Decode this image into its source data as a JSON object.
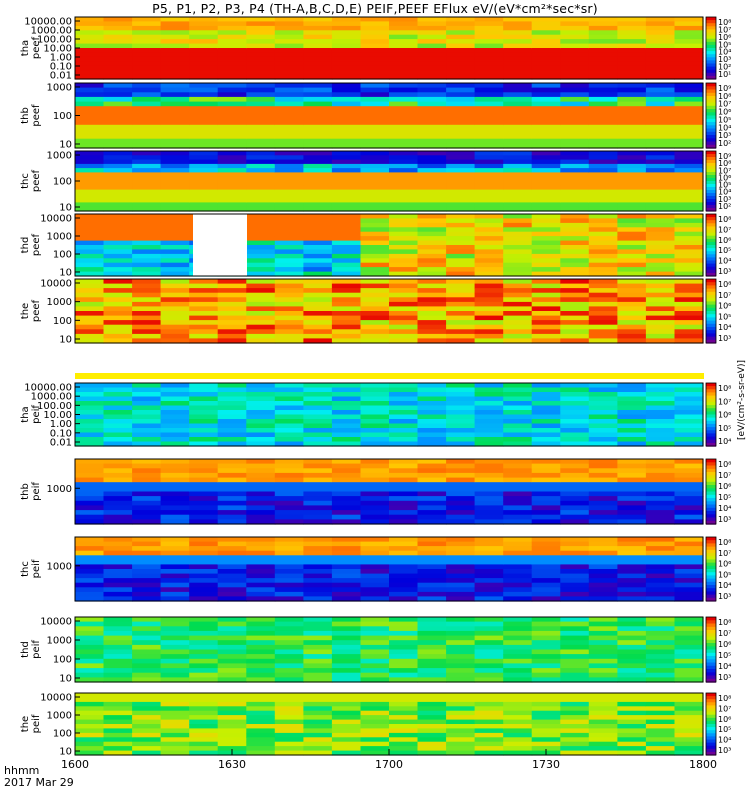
{
  "title": "P5, P1, P2, P3, P4 (TH-A,B,C,D,E) PEIF,PEEF EFlux eV/(eV*cm²*sec*sr)",
  "footer": {
    "time_format": "hhmm",
    "date": "2017 Mar 29"
  },
  "chart_data": {
    "type": "heatmap",
    "x_ticks": [
      "1600",
      "1630",
      "1700",
      "1730",
      "1800"
    ],
    "x_range": [
      1600,
      1800
    ],
    "colorbar_unit": "[eV/(cm²-s-sr-eV)]",
    "panels": [
      {
        "probe": "tha",
        "product": "peef",
        "yticks": [
          "10000.00",
          "1000.00",
          "100.00",
          "10.00",
          "1.00",
          "0.10",
          "0.01"
        ],
        "cbar_ticks": [
          "10⁸",
          "10⁷",
          "10⁶",
          "10⁵",
          "10⁴",
          "10³",
          "10²",
          "10¹"
        ]
      },
      {
        "probe": "thb",
        "product": "peef",
        "yticks": [
          "1000",
          "100",
          "10"
        ],
        "cbar_ticks": [
          "10⁹",
          "10⁸",
          "10⁷",
          "10⁶",
          "10⁵",
          "10⁴",
          "10³",
          "10²"
        ]
      },
      {
        "probe": "thc",
        "product": "peef",
        "yticks": [
          "1000",
          "100",
          "10"
        ],
        "cbar_ticks": [
          "10⁹",
          "10⁸",
          "10⁷",
          "10⁶",
          "10⁵",
          "10⁴",
          "10³",
          "10²"
        ]
      },
      {
        "probe": "thd",
        "product": "peef",
        "yticks": [
          "10000",
          "1000",
          "100",
          "10"
        ],
        "cbar_ticks": [
          "10⁸",
          "10⁷",
          "10⁶",
          "10⁵",
          "10⁴",
          "10³"
        ]
      },
      {
        "probe": "the",
        "product": "peef",
        "yticks": [
          "10000",
          "1000",
          "100",
          "10"
        ],
        "cbar_ticks": [
          "10⁸",
          "10⁷",
          "10⁶",
          "10⁵",
          "10⁴",
          "10³"
        ]
      },
      {
        "probe": "tha",
        "product": "peif",
        "yticks": [
          "10000.00",
          "1000.00",
          "100.00",
          "10.00",
          "1.00",
          "0.10",
          "0.01"
        ],
        "cbar_ticks": [
          "10⁸",
          "10⁷",
          "10⁶",
          "10⁵",
          "10⁴"
        ]
      },
      {
        "probe": "thb",
        "product": "peif",
        "yticks": [
          "1000"
        ],
        "cbar_ticks": [
          "10⁸",
          "10⁷",
          "10⁶",
          "10⁵",
          "10⁴",
          "10³"
        ]
      },
      {
        "probe": "thc",
        "product": "peif",
        "yticks": [
          "1000"
        ],
        "cbar_ticks": [
          "10⁸",
          "10⁷",
          "10⁶",
          "10⁵",
          "10⁴",
          "10³"
        ]
      },
      {
        "probe": "thd",
        "product": "peif",
        "yticks": [
          "10000",
          "1000",
          "100",
          "10"
        ],
        "cbar_ticks": [
          "10⁸",
          "10⁷",
          "10⁶",
          "10⁵",
          "10⁴",
          "10³"
        ]
      },
      {
        "probe": "the",
        "product": "peif",
        "yticks": [
          "10000",
          "1000",
          "100",
          "10"
        ],
        "cbar_ticks": [
          "10⁸",
          "10⁷",
          "10⁶",
          "10⁵",
          "10⁴",
          "10³"
        ]
      }
    ]
  }
}
